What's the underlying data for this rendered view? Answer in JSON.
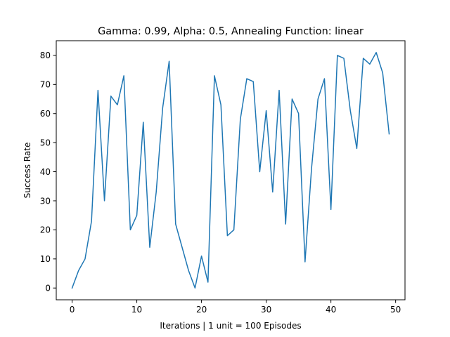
{
  "chart_data": {
    "type": "line",
    "title": "Gamma: 0.99, Alpha: 0.5, Annealing Function: linear",
    "xlabel": "Iterations | 1 unit = 100 Episodes",
    "ylabel": "Success Rate",
    "xlim": [
      -2.45,
      51.45
    ],
    "ylim": [
      -4.05,
      85.05
    ],
    "xticks": [
      0,
      10,
      20,
      30,
      40,
      50
    ],
    "yticks": [
      0,
      10,
      20,
      30,
      40,
      50,
      60,
      70,
      80
    ],
    "grid": false,
    "series": [
      {
        "color": "#1f77b4",
        "x": [
          0,
          1,
          2,
          3,
          4,
          5,
          6,
          7,
          8,
          9,
          10,
          11,
          12,
          13,
          14,
          15,
          16,
          17,
          18,
          19,
          20,
          21,
          22,
          23,
          24,
          25,
          26,
          27,
          28,
          29,
          30,
          31,
          32,
          33,
          34,
          35,
          36,
          37,
          38,
          39,
          40,
          41,
          42,
          43,
          44,
          45,
          46,
          47,
          48,
          49
        ],
        "y": [
          0,
          6,
          10,
          23,
          68,
          30,
          66,
          63,
          73,
          20,
          25,
          57,
          14,
          33,
          62,
          78,
          22,
          14,
          6,
          0,
          11,
          2,
          73,
          63,
          18,
          20,
          58,
          72,
          71,
          40,
          61,
          33,
          68,
          22,
          65,
          60,
          9,
          41,
          65,
          72,
          27,
          80,
          79,
          61,
          48,
          79,
          77,
          81,
          74,
          53
        ]
      }
    ]
  }
}
